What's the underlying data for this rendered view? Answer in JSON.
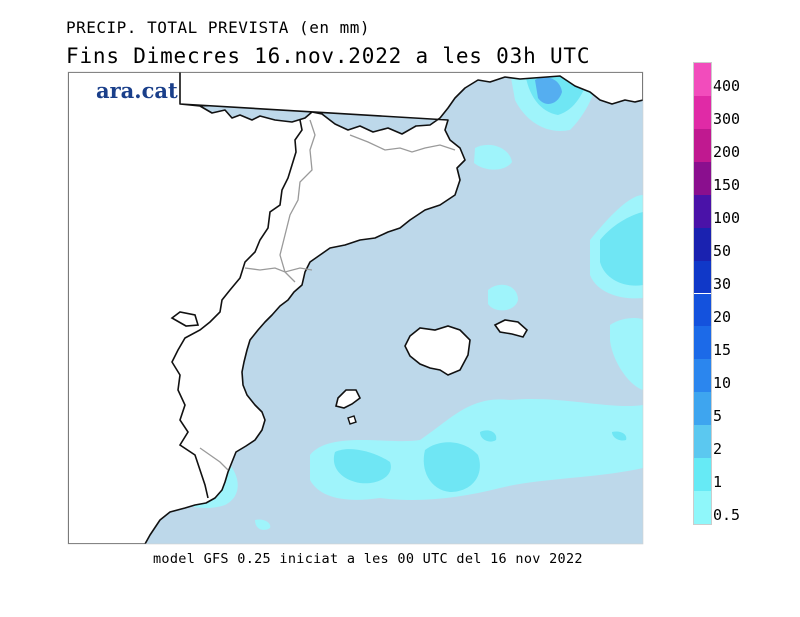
{
  "title": {
    "line1": "PRECIP. TOTAL PREVISTA (en mm)",
    "line2": "Fins Dimecres  16.nov.2022 a les 03h UTC"
  },
  "logo": {
    "text": "ara.cat",
    "color": "#1a3f8a"
  },
  "footer": "model GFS 0.25 iniciat a les 00 UTC del 16 nov 2022",
  "legend": {
    "bins": [
      {
        "label": "0.5",
        "color": "#8ff7fa"
      },
      {
        "label": "1",
        "color": "#66eaf5"
      },
      {
        "label": "2",
        "color": "#5bc8f0"
      },
      {
        "label": "5",
        "color": "#3ea5ef"
      },
      {
        "label": "10",
        "color": "#2b86ee"
      },
      {
        "label": "15",
        "color": "#1c6ae8"
      },
      {
        "label": "20",
        "color": "#1452dd"
      },
      {
        "label": "30",
        "color": "#1038c8"
      },
      {
        "label": "50",
        "color": "#1a22b0"
      },
      {
        "label": "100",
        "color": "#4a12a8"
      },
      {
        "label": "150",
        "color": "#8a0f8e"
      },
      {
        "label": "200",
        "color": "#c01990"
      },
      {
        "label": "300",
        "color": "#e02aa6"
      },
      {
        "label": "400",
        "color": "#f24cbc"
      }
    ]
  },
  "colors": {
    "sea": "#bdd8ea",
    "land": "#ffffff",
    "precip_light": "#9ff4fb",
    "precip_mid": "#6fe6f4",
    "precip_heavy": "#55aef0"
  }
}
